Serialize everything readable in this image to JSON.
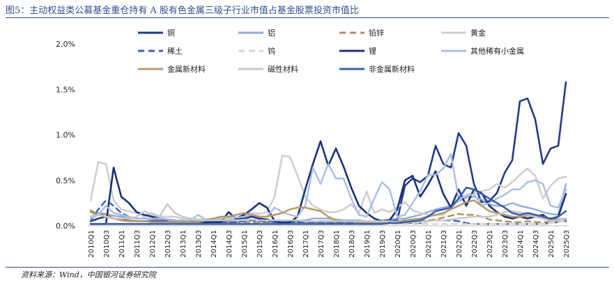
{
  "header": {
    "title": "图5：主动权益类公募基金重仓持有 A 股有色金属三级子行业市值占基金股票投资市值比"
  },
  "footer": {
    "source": "资料来源：Wind，中国银河证券研究院"
  },
  "chart_data": {
    "type": "line",
    "title": "",
    "xlabel": "",
    "ylabel": "",
    "ylim": [
      0,
      2.0
    ],
    "yticks": [
      "0.0%",
      "0.5%",
      "1.0%",
      "1.5%",
      "2.0%"
    ],
    "x_tick_labels": [
      "2010Q1",
      "2010Q3",
      "2011Q1",
      "2011Q3",
      "2012Q1",
      "2012Q3",
      "2013Q1",
      "2013Q3",
      "2014Q1",
      "2014Q3",
      "2015Q1",
      "2015Q3",
      "2016Q1",
      "2016Q3",
      "2017Q1",
      "2017Q3",
      "2018Q1",
      "2018Q3",
      "2019Q1",
      "2019Q3",
      "2020Q1",
      "2020Q3",
      "2021Q1",
      "2021Q3",
      "2022Q1",
      "2022Q3",
      "2023Q1",
      "2023Q3",
      "2024Q1",
      "2024Q3",
      "2025Q1",
      "2025Q3"
    ],
    "x": [
      "2010Q1",
      "2010Q2",
      "2010Q3",
      "2010Q4",
      "2011Q1",
      "2011Q2",
      "2011Q3",
      "2011Q4",
      "2012Q1",
      "2012Q2",
      "2012Q3",
      "2012Q4",
      "2013Q1",
      "2013Q2",
      "2013Q3",
      "2013Q4",
      "2014Q1",
      "2014Q2",
      "2014Q3",
      "2014Q4",
      "2015Q1",
      "2015Q2",
      "2015Q3",
      "2015Q4",
      "2016Q1",
      "2016Q2",
      "2016Q3",
      "2016Q4",
      "2017Q1",
      "2017Q2",
      "2017Q3",
      "2017Q4",
      "2018Q1",
      "2018Q2",
      "2018Q3",
      "2018Q4",
      "2019Q1",
      "2019Q2",
      "2019Q3",
      "2019Q4",
      "2020Q1",
      "2020Q2",
      "2020Q3",
      "2020Q4",
      "2021Q1",
      "2021Q2",
      "2021Q3",
      "2021Q4",
      "2022Q1",
      "2022Q2",
      "2022Q3",
      "2022Q4",
      "2023Q1",
      "2023Q2",
      "2023Q3",
      "2023Q4",
      "2024Q1",
      "2024Q2",
      "2024Q3",
      "2024Q4",
      "2025Q1",
      "2025Q2",
      "2025Q3"
    ],
    "legend_position": "top",
    "grid": false,
    "series": [
      {
        "name": "铜",
        "color": "#1f3a8a",
        "dash": "solid",
        "width": 2.6,
        "values": [
          0.05,
          0.08,
          0.1,
          0.08,
          0.07,
          0.06,
          0.05,
          0.05,
          0.05,
          0.05,
          0.05,
          0.04,
          0.04,
          0.04,
          0.04,
          0.05,
          0.06,
          0.07,
          0.09,
          0.08,
          0.08,
          0.1,
          0.08,
          0.07,
          0.05,
          0.05,
          0.04,
          0.05,
          0.05,
          0.04,
          0.05,
          0.05,
          0.05,
          0.04,
          0.04,
          0.04,
          0.04,
          0.05,
          0.05,
          0.05,
          0.06,
          0.44,
          0.52,
          0.48,
          0.55,
          0.88,
          0.68,
          0.64,
          1.02,
          0.88,
          0.46,
          0.26,
          0.27,
          0.36,
          0.58,
          0.72,
          1.37,
          1.4,
          1.17,
          0.68,
          0.85,
          0.88,
          1.58
        ]
      },
      {
        "name": "铝",
        "color": "#93aadb",
        "dash": "solid",
        "width": 2.4,
        "values": [
          0.1,
          0.14,
          0.13,
          0.11,
          0.1,
          0.09,
          0.08,
          0.08,
          0.07,
          0.07,
          0.06,
          0.06,
          0.05,
          0.05,
          0.05,
          0.05,
          0.05,
          0.05,
          0.06,
          0.06,
          0.07,
          0.07,
          0.06,
          0.06,
          0.06,
          0.06,
          0.06,
          0.06,
          0.06,
          0.08,
          0.08,
          0.08,
          0.07,
          0.06,
          0.06,
          0.06,
          0.05,
          0.05,
          0.06,
          0.07,
          0.08,
          0.08,
          0.1,
          0.12,
          0.15,
          0.18,
          0.2,
          0.22,
          0.27,
          0.31,
          0.32,
          0.29,
          0.23,
          0.22,
          0.22,
          0.25,
          0.22,
          0.2,
          0.18,
          0.15,
          0.13,
          0.12,
          0.46
        ]
      },
      {
        "name": "铅锌",
        "color": "#b08d5a",
        "dash": "dash",
        "width": 2.4,
        "values": [
          0.17,
          0.12,
          0.13,
          0.08,
          0.07,
          0.06,
          0.05,
          0.05,
          0.04,
          0.04,
          0.04,
          0.04,
          0.04,
          0.04,
          0.04,
          0.04,
          0.04,
          0.04,
          0.04,
          0.04,
          0.04,
          0.04,
          0.04,
          0.04,
          0.04,
          0.04,
          0.04,
          0.04,
          0.04,
          0.04,
          0.04,
          0.04,
          0.03,
          0.03,
          0.03,
          0.03,
          0.03,
          0.03,
          0.03,
          0.03,
          0.03,
          0.03,
          0.04,
          0.05,
          0.06,
          0.07,
          0.09,
          0.11,
          0.13,
          0.12,
          0.12,
          0.1,
          0.07,
          0.06,
          0.05,
          0.04,
          0.04,
          0.05,
          0.04,
          0.04,
          0.04,
          0.05,
          0.06
        ]
      },
      {
        "name": "黄金",
        "color": "#cfcfcf",
        "dash": "solid",
        "width": 2.6,
        "values": [
          0.28,
          0.7,
          0.68,
          0.28,
          0.18,
          0.16,
          0.14,
          0.1,
          0.14,
          0.1,
          0.1,
          0.1,
          0.08,
          0.08,
          0.07,
          0.07,
          0.06,
          0.08,
          0.08,
          0.09,
          0.12,
          0.14,
          0.13,
          0.15,
          0.32,
          0.77,
          0.76,
          0.55,
          0.32,
          0.22,
          0.18,
          0.15,
          0.15,
          0.18,
          0.24,
          0.14,
          0.38,
          0.14,
          0.18,
          0.15,
          0.2,
          0.26,
          0.17,
          0.14,
          0.12,
          0.12,
          0.12,
          0.2,
          0.28,
          0.34,
          0.36,
          0.38,
          0.4,
          0.46,
          0.42,
          0.48,
          0.56,
          0.63,
          0.55,
          0.3,
          0.44,
          0.52,
          0.54
        ]
      },
      {
        "name": "稀土",
        "color": "#3560b8",
        "dash": "dash",
        "width": 2.4,
        "values": [
          0.05,
          0.18,
          0.28,
          0.22,
          0.14,
          0.1,
          0.08,
          0.08,
          0.08,
          0.07,
          0.06,
          0.06,
          0.05,
          0.05,
          0.04,
          0.04,
          0.04,
          0.04,
          0.04,
          0.04,
          0.05,
          0.06,
          0.05,
          0.05,
          0.04,
          0.04,
          0.04,
          0.04,
          0.04,
          0.04,
          0.04,
          0.03,
          0.03,
          0.03,
          0.03,
          0.03,
          0.03,
          0.03,
          0.03,
          0.03,
          0.03,
          0.03,
          0.03,
          0.03,
          0.05,
          0.06,
          0.06,
          0.06,
          0.05,
          0.03,
          0.02,
          0.02,
          0.02,
          0.02,
          0.02,
          0.02,
          0.02,
          0.02,
          0.02,
          0.02,
          0.03,
          0.04,
          0.05
        ]
      },
      {
        "name": "钨",
        "color": "#d6d6d6",
        "dash": "dash",
        "width": 2.4,
        "values": [
          0.02,
          0.02,
          0.02,
          0.02,
          0.02,
          0.02,
          0.02,
          0.02,
          0.02,
          0.02,
          0.02,
          0.02,
          0.02,
          0.02,
          0.02,
          0.02,
          0.02,
          0.02,
          0.02,
          0.02,
          0.02,
          0.02,
          0.02,
          0.02,
          0.02,
          0.02,
          0.02,
          0.02,
          0.02,
          0.02,
          0.02,
          0.02,
          0.02,
          0.02,
          0.02,
          0.02,
          0.02,
          0.02,
          0.02,
          0.02,
          0.02,
          0.02,
          0.02,
          0.02,
          0.02,
          0.02,
          0.02,
          0.02,
          0.02,
          0.02,
          0.02,
          0.02,
          0.02,
          0.02,
          0.02,
          0.02,
          0.02,
          0.02,
          0.02,
          0.02,
          0.03,
          0.04,
          0.05
        ]
      },
      {
        "name": "锂",
        "color": "#18307a",
        "dash": "solid",
        "width": 2.6,
        "values": [
          0.02,
          0.02,
          0.02,
          0.64,
          0.32,
          0.25,
          0.15,
          0.12,
          0.1,
          0.08,
          0.07,
          0.06,
          0.05,
          0.04,
          0.04,
          0.04,
          0.04,
          0.04,
          0.15,
          0.08,
          0.12,
          0.18,
          0.25,
          0.2,
          0.05,
          0.03,
          0.04,
          0.1,
          0.4,
          0.68,
          0.93,
          0.66,
          0.85,
          0.65,
          0.42,
          0.22,
          0.14,
          0.08,
          0.05,
          0.06,
          0.18,
          0.5,
          0.55,
          0.32,
          0.45,
          0.6,
          0.35,
          0.2,
          0.4,
          0.22,
          0.4,
          0.36,
          0.22,
          0.15,
          0.1,
          0.08,
          0.1,
          0.08,
          0.1,
          0.12,
          0.06,
          0.1,
          0.35
        ]
      },
      {
        "name": "其他稀有小金属",
        "color": "#a8bde6",
        "dash": "solid",
        "width": 2.4,
        "values": [
          0.08,
          0.12,
          0.22,
          0.14,
          0.12,
          0.1,
          0.08,
          0.08,
          0.08,
          0.08,
          0.07,
          0.06,
          0.06,
          0.06,
          0.12,
          0.07,
          0.08,
          0.08,
          0.1,
          0.09,
          0.1,
          0.12,
          0.1,
          0.1,
          0.2,
          0.15,
          0.12,
          0.1,
          0.22,
          0.64,
          0.46,
          0.68,
          0.52,
          0.52,
          0.3,
          0.12,
          0.1,
          0.3,
          0.48,
          0.4,
          0.1,
          0.12,
          0.25,
          0.38,
          0.56,
          0.56,
          0.63,
          0.79,
          0.3,
          0.32,
          0.35,
          0.22,
          0.25,
          0.3,
          0.34,
          0.4,
          0.4,
          0.48,
          0.5,
          0.46,
          0.22,
          0.2,
          0.4
        ]
      },
      {
        "name": "金属新材料",
        "color": "#b89b6a",
        "dash": "solid",
        "width": 2.6,
        "values": [
          0.15,
          0.12,
          0.1,
          0.08,
          0.06,
          0.05,
          0.05,
          0.05,
          0.04,
          0.04,
          0.04,
          0.04,
          0.04,
          0.04,
          0.04,
          0.06,
          0.08,
          0.1,
          0.1,
          0.12,
          0.14,
          0.12,
          0.1,
          0.1,
          0.12,
          0.14,
          0.18,
          0.2,
          0.2,
          0.18,
          0.16,
          0.1,
          0.06,
          0.05,
          0.05,
          0.04,
          0.04,
          0.04,
          0.04,
          0.04,
          0.05,
          0.06,
          0.07,
          0.08,
          0.1,
          0.12,
          0.14,
          0.18,
          0.22,
          0.26,
          0.28,
          0.22,
          0.16,
          0.14,
          0.12,
          0.1,
          0.1,
          0.11,
          0.1,
          0.08,
          0.06,
          0.07,
          0.08
        ]
      },
      {
        "name": "磁性材料",
        "color": "#c8c8c8",
        "dash": "solid",
        "width": 2.4,
        "values": [
          0.1,
          0.12,
          0.1,
          0.08,
          0.08,
          0.08,
          0.1,
          0.16,
          0.12,
          0.1,
          0.24,
          0.14,
          0.1,
          0.08,
          0.07,
          0.06,
          0.06,
          0.06,
          0.07,
          0.06,
          0.06,
          0.07,
          0.06,
          0.06,
          0.06,
          0.06,
          0.06,
          0.06,
          0.05,
          0.05,
          0.05,
          0.05,
          0.05,
          0.05,
          0.05,
          0.05,
          0.05,
          0.05,
          0.05,
          0.05,
          0.04,
          0.04,
          0.04,
          0.04,
          0.05,
          0.06,
          0.06,
          0.07,
          0.08,
          0.09,
          0.1,
          0.1,
          0.1,
          0.12,
          0.15,
          0.16,
          0.15,
          0.12,
          0.1,
          0.08,
          0.05,
          0.06,
          0.08
        ]
      },
      {
        "name": "非金属新材料",
        "color": "#3a5fae",
        "dash": "solid",
        "width": 2.6,
        "values": [
          0.02,
          0.02,
          0.02,
          0.02,
          0.02,
          0.02,
          0.02,
          0.02,
          0.02,
          0.02,
          0.02,
          0.02,
          0.02,
          0.02,
          0.02,
          0.02,
          0.02,
          0.02,
          0.02,
          0.02,
          0.02,
          0.02,
          0.02,
          0.02,
          0.02,
          0.02,
          0.02,
          0.02,
          0.02,
          0.02,
          0.02,
          0.02,
          0.02,
          0.02,
          0.02,
          0.02,
          0.02,
          0.02,
          0.02,
          0.03,
          0.03,
          0.04,
          0.05,
          0.06,
          0.1,
          0.16,
          0.18,
          0.2,
          0.3,
          0.42,
          0.4,
          0.35,
          0.3,
          0.25,
          0.2,
          0.14,
          0.12,
          0.14,
          0.12,
          0.1,
          0.08,
          0.1,
          0.16
        ]
      }
    ]
  }
}
